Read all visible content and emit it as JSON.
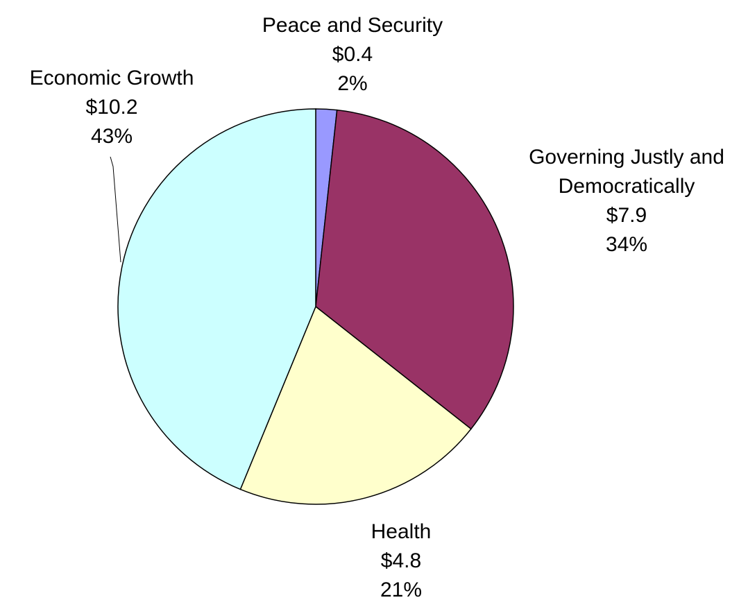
{
  "chart_data": {
    "type": "pie",
    "title": "",
    "start_angle_deg": 0,
    "direction": "clockwise",
    "slices": [
      {
        "name": "Peace and Security",
        "value": 0.4,
        "value_label": "$0.4",
        "percent_label": "2%",
        "color": "#9999FF"
      },
      {
        "name": "Governing Justly and Democratically",
        "value": 7.9,
        "value_label": "$7.9",
        "percent_label": "34%",
        "color": "#993366"
      },
      {
        "name": "Health",
        "value": 4.8,
        "value_label": "$4.8",
        "percent_label": "21%",
        "color": "#FFFFCC"
      },
      {
        "name": "Economic Growth",
        "value": 10.2,
        "value_label": "$10.2",
        "percent_label": "43%",
        "color": "#CCFFFF"
      }
    ],
    "label_lines": [
      [
        "Peace and Security"
      ],
      [
        "Governing Justly and",
        "Democratically"
      ],
      [
        "Health"
      ],
      [
        "Economic Growth"
      ]
    ]
  }
}
